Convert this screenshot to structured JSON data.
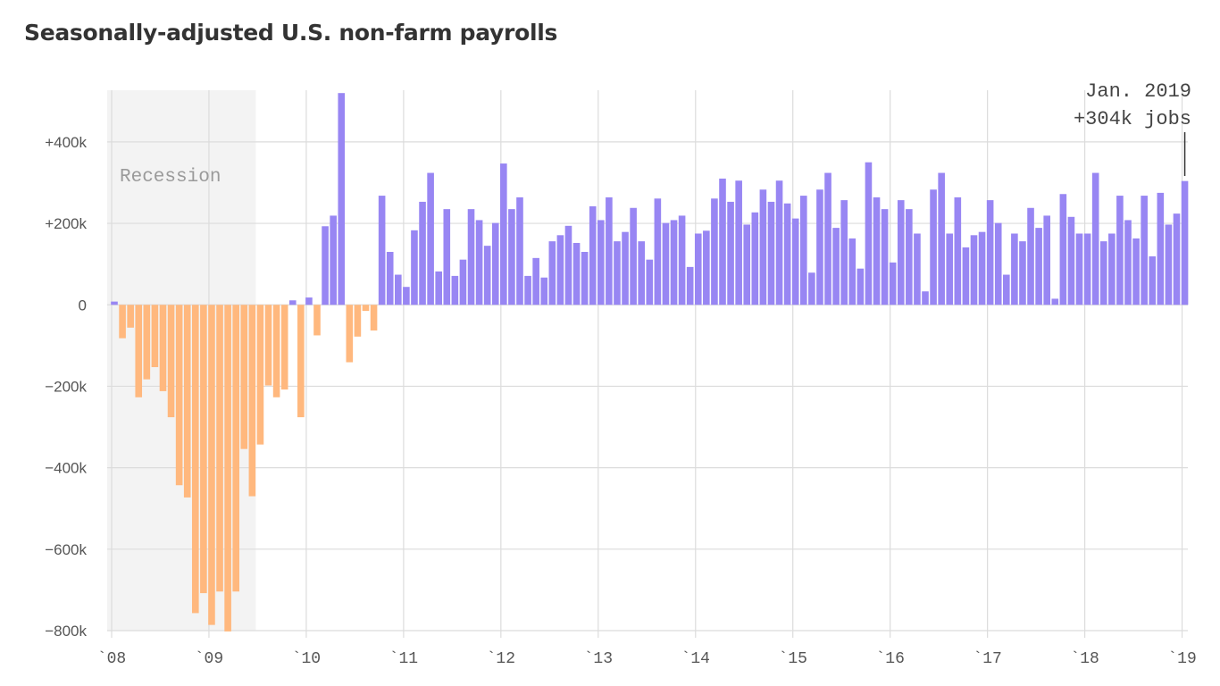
{
  "chart_data": {
    "type": "bar",
    "title": "Seasonally-adjusted U.S. non-farm payrolls",
    "xlabel": "",
    "ylabel": "",
    "ylim": [
      -800,
      527
    ],
    "grid": true,
    "unit": "thousands of jobs",
    "y_ticks": [
      {
        "value": 400,
        "label": "+400k"
      },
      {
        "value": 200,
        "label": "+200k"
      },
      {
        "value": 0,
        "label": "0"
      },
      {
        "value": -200,
        "label": "−200k"
      },
      {
        "value": -400,
        "label": "−400k"
      },
      {
        "value": -600,
        "label": "−600k"
      },
      {
        "value": -800,
        "label": "−800k"
      }
    ],
    "x_ticks": [
      {
        "year": 2008,
        "label": "`08"
      },
      {
        "year": 2009,
        "label": "`09"
      },
      {
        "year": 2010,
        "label": "`10"
      },
      {
        "year": 2011,
        "label": "`11"
      },
      {
        "year": 2012,
        "label": "`12"
      },
      {
        "year": 2013,
        "label": "`13"
      },
      {
        "year": 2014,
        "label": "`14"
      },
      {
        "year": 2015,
        "label": "`15"
      },
      {
        "year": 2016,
        "label": "`16"
      },
      {
        "year": 2017,
        "label": "`17"
      },
      {
        "year": 2018,
        "label": "`18"
      },
      {
        "year": 2019,
        "label": "`19"
      }
    ],
    "start_month": "2008-01",
    "values": [
      8,
      -82,
      -56,
      -227,
      -183,
      -153,
      -212,
      -276,
      -443,
      -473,
      -757,
      -708,
      -786,
      -704,
      -802,
      -704,
      -354,
      -470,
      -343,
      -198,
      -227,
      -208,
      11,
      -276,
      18,
      -75,
      193,
      219,
      520,
      -141,
      -78,
      -15,
      -63,
      268,
      130,
      74,
      44,
      183,
      253,
      324,
      82,
      235,
      71,
      111,
      235,
      208,
      145,
      201,
      347,
      235,
      264,
      71,
      115,
      67,
      156,
      171,
      194,
      152,
      130,
      242,
      208,
      264,
      156,
      179,
      238,
      156,
      111,
      261,
      201,
      208,
      219,
      93,
      175,
      182,
      261,
      310,
      253,
      305,
      197,
      227,
      283,
      253,
      305,
      249,
      212,
      268,
      79,
      283,
      324,
      189,
      257,
      163,
      89,
      350,
      264,
      235,
      104,
      257,
      235,
      175,
      33,
      283,
      324,
      175,
      264,
      141,
      171,
      179,
      257,
      201,
      74,
      175,
      156,
      238,
      189,
      219,
      15,
      272,
      216,
      175,
      175,
      324,
      156,
      175,
      268,
      208,
      163,
      268,
      119,
      275,
      197,
      224,
      304
    ],
    "colors": {
      "positive": "#9886f3",
      "negative": "#ffb87e",
      "recession": "#f3f3f3"
    },
    "recession": {
      "label": "Recession",
      "start": "2007-12",
      "end": "2009-06"
    },
    "annotation": {
      "line1": "Jan. 2019",
      "line2": "+304k jobs",
      "month": "2019-01"
    }
  }
}
